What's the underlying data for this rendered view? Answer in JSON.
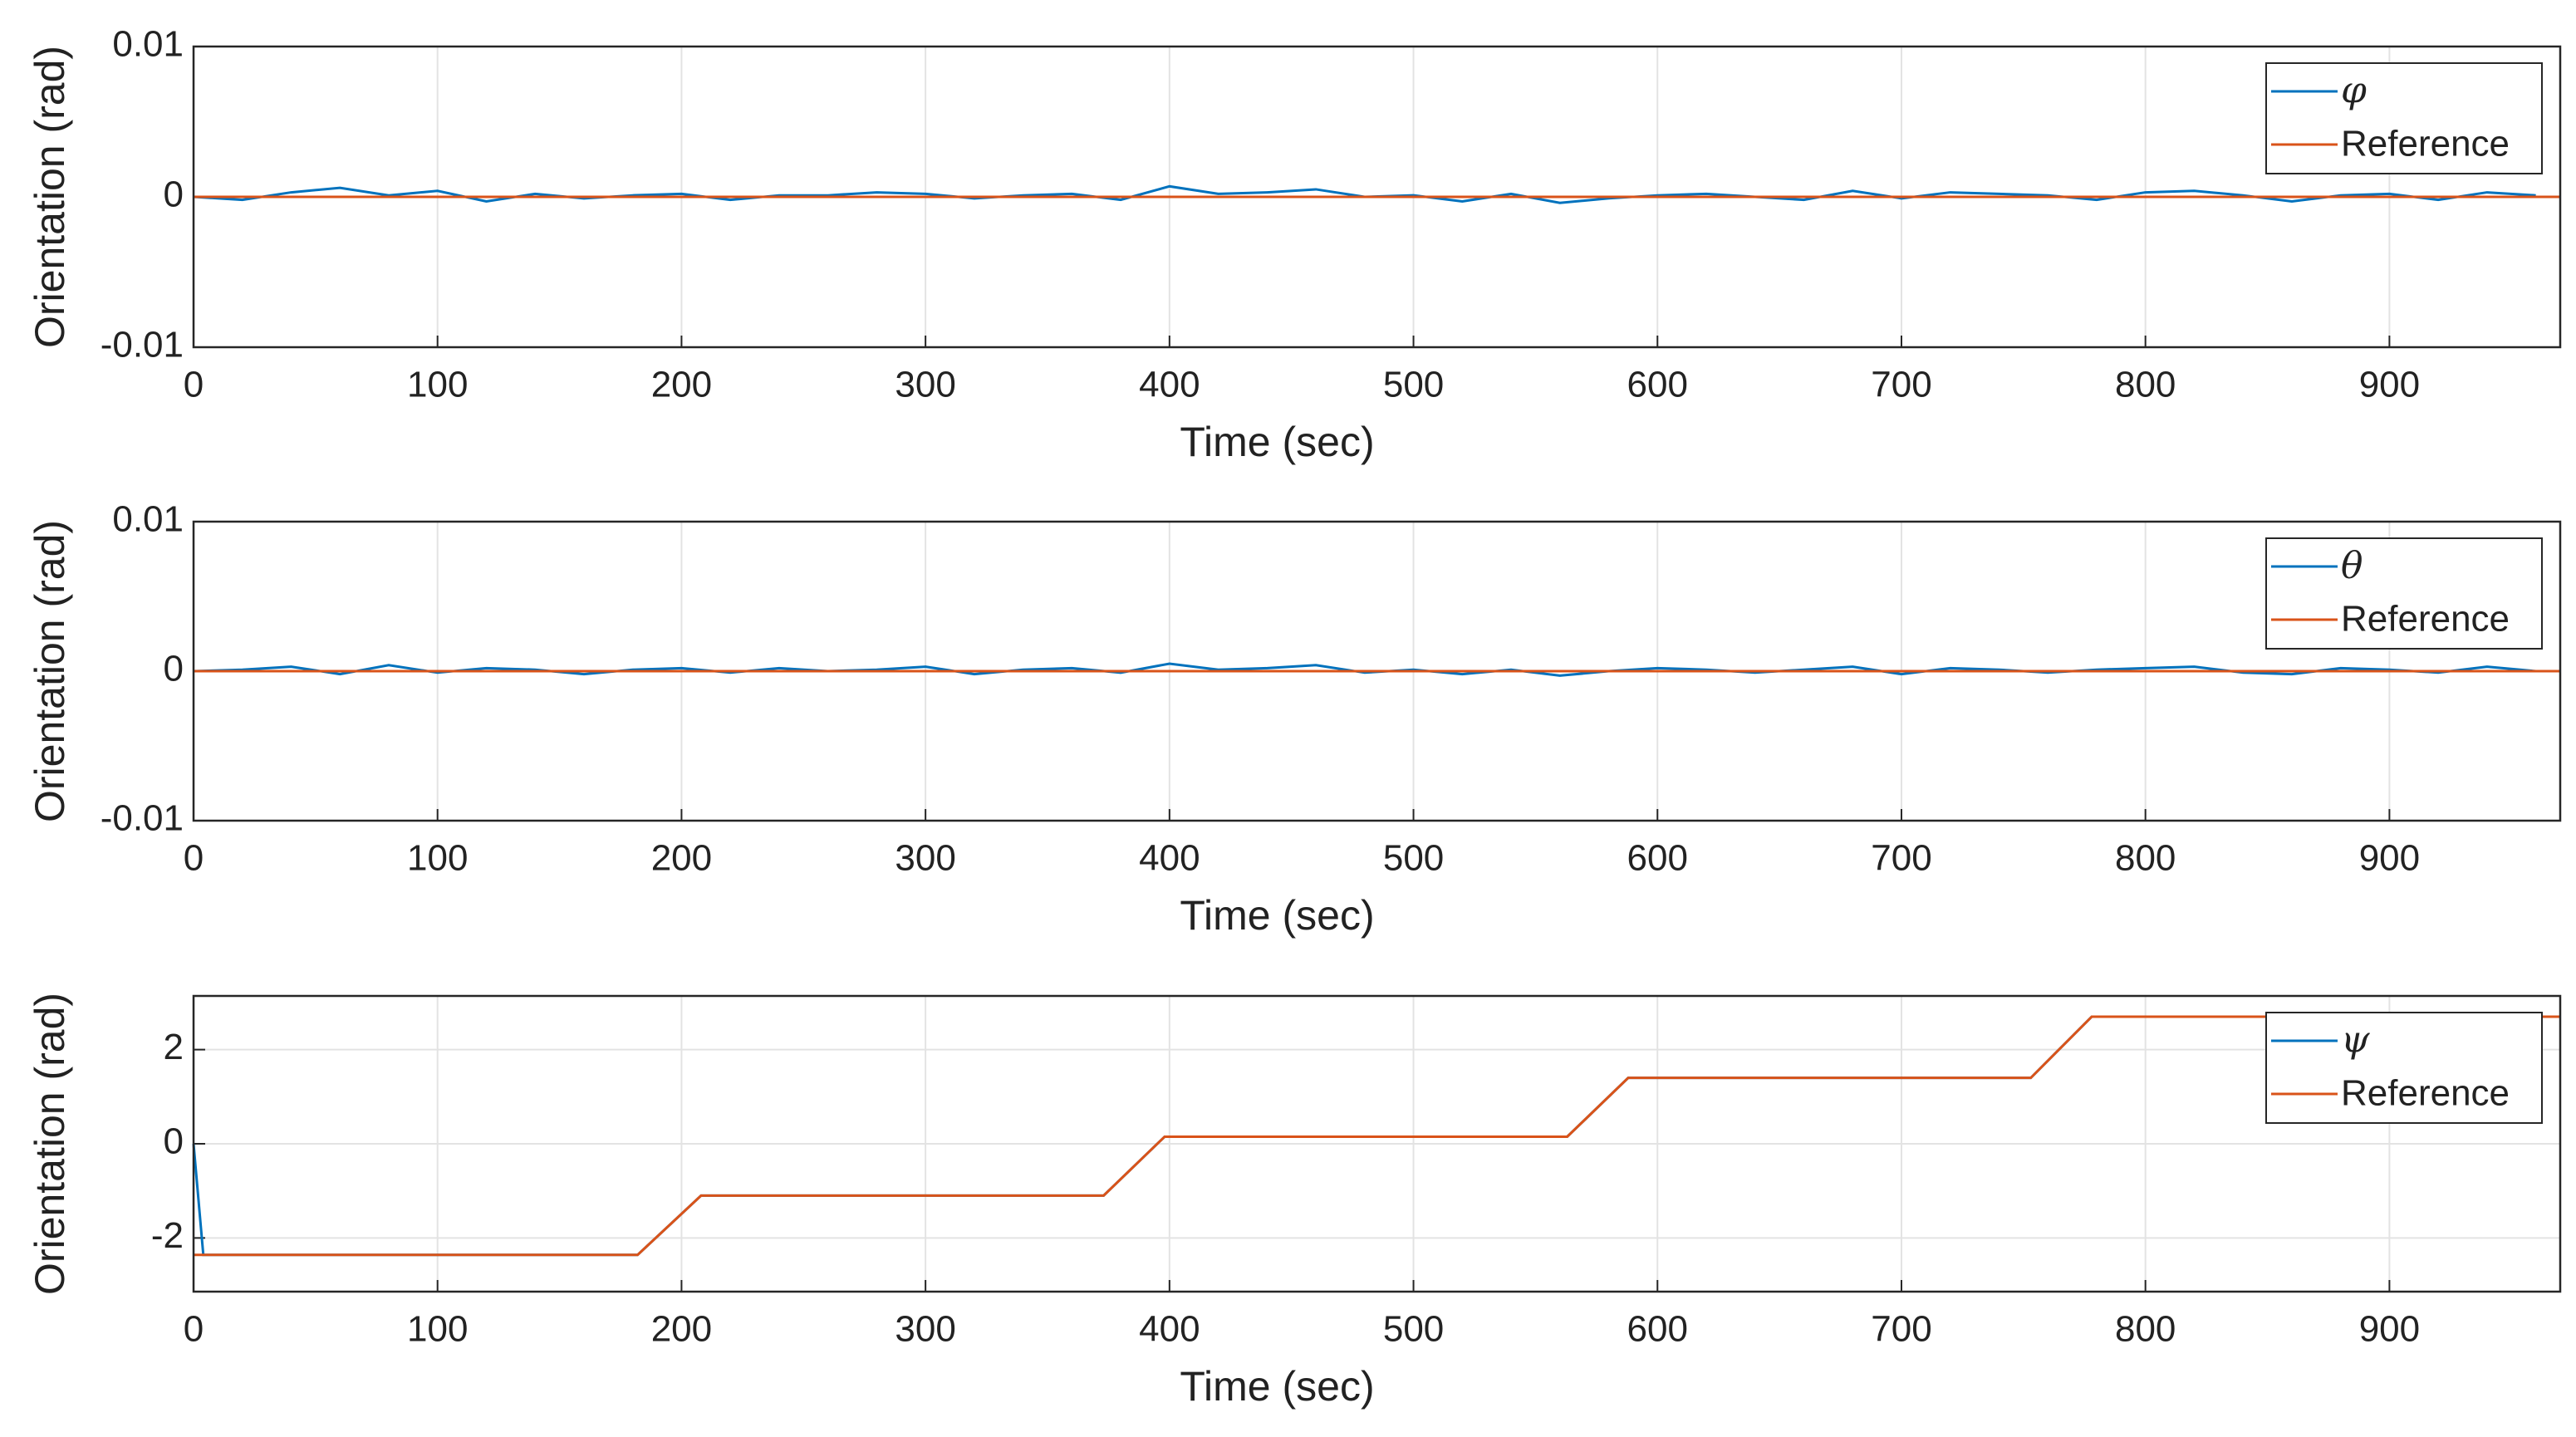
{
  "chart_data": [
    {
      "type": "line",
      "xlabel": "Time (sec)",
      "ylabel": "Orientation (rad)",
      "xlim": [
        0,
        970
      ],
      "xticks": [
        0,
        100,
        200,
        300,
        400,
        500,
        600,
        700,
        800,
        900
      ],
      "ylim": [
        -0.01,
        0.01
      ],
      "yticks": [
        -0.01,
        0,
        0.01
      ],
      "grid": true,
      "legend": "northeast",
      "series": [
        {
          "name": "φ",
          "color": "#0072BD",
          "x": [
            0,
            20,
            40,
            60,
            80,
            100,
            120,
            140,
            160,
            180,
            200,
            220,
            240,
            260,
            280,
            300,
            320,
            340,
            360,
            380,
            400,
            420,
            440,
            460,
            480,
            500,
            520,
            540,
            560,
            580,
            600,
            620,
            640,
            660,
            680,
            700,
            720,
            740,
            760,
            780,
            800,
            820,
            840,
            860,
            880,
            900,
            920,
            940,
            960
          ],
          "values": [
            0,
            -0.0002,
            0.0003,
            0.0006,
            0.0001,
            0.0004,
            -0.0003,
            0.0002,
            -0.0001,
            0.0001,
            0.0002,
            -0.0002,
            0.0001,
            0.0001,
            0.0003,
            0.0002,
            -0.0001,
            0.0001,
            0.0002,
            -0.0002,
            0.0007,
            0.0002,
            0.0003,
            0.0005,
            0,
            0.0001,
            -0.0003,
            0.0002,
            -0.0004,
            -0.0001,
            0.0001,
            0.0002,
            0,
            -0.0002,
            0.0004,
            -0.0001,
            0.0003,
            0.0002,
            0.0001,
            -0.0002,
            0.0003,
            0.0004,
            0.0001,
            -0.0003,
            0.0001,
            0.0002,
            -0.0002,
            0.0003,
            0.0001
          ]
        },
        {
          "name": "Reference",
          "color": "#D95319",
          "x": [
            0,
            970
          ],
          "values": [
            0,
            0
          ]
        }
      ]
    },
    {
      "type": "line",
      "xlabel": "Time (sec)",
      "ylabel": "Orientation (rad)",
      "xlim": [
        0,
        970
      ],
      "xticks": [
        0,
        100,
        200,
        300,
        400,
        500,
        600,
        700,
        800,
        900
      ],
      "ylim": [
        -0.01,
        0.01
      ],
      "yticks": [
        -0.01,
        0,
        0.01
      ],
      "grid": true,
      "legend": "northeast",
      "series": [
        {
          "name": "θ",
          "color": "#0072BD",
          "x": [
            0,
            20,
            40,
            60,
            80,
            100,
            120,
            140,
            160,
            180,
            200,
            220,
            240,
            260,
            280,
            300,
            320,
            340,
            360,
            380,
            400,
            420,
            440,
            460,
            480,
            500,
            520,
            540,
            560,
            580,
            600,
            620,
            640,
            660,
            680,
            700,
            720,
            740,
            760,
            780,
            800,
            820,
            840,
            860,
            880,
            900,
            920,
            940,
            960
          ],
          "values": [
            0,
            0.0001,
            0.0003,
            -0.0002,
            0.0004,
            -0.0001,
            0.0002,
            0.0001,
            -0.0002,
            0.0001,
            0.0002,
            -0.0001,
            0.0002,
            0,
            0.0001,
            0.0003,
            -0.0002,
            0.0001,
            0.0002,
            -0.0001,
            0.0005,
            0.0001,
            0.0002,
            0.0004,
            -0.0001,
            0.0001,
            -0.0002,
            0.0001,
            -0.0003,
            0,
            0.0002,
            0.0001,
            -0.0001,
            0.0001,
            0.0003,
            -0.0002,
            0.0002,
            0.0001,
            -0.0001,
            0.0001,
            0.0002,
            0.0003,
            -0.0001,
            -0.0002,
            0.0002,
            0.0001,
            -0.0001,
            0.0003,
            0
          ]
        },
        {
          "name": "Reference",
          "color": "#D95319",
          "x": [
            0,
            970
          ],
          "values": [
            0,
            0
          ]
        }
      ]
    },
    {
      "type": "line",
      "xlabel": "Time (sec)",
      "ylabel": "Orientation (rad)",
      "xlim": [
        0,
        970
      ],
      "xticks": [
        0,
        100,
        200,
        300,
        400,
        500,
        600,
        700,
        800,
        900
      ],
      "ylim": [
        -3.14,
        3.14
      ],
      "yticks": [
        -2,
        0,
        2
      ],
      "grid": true,
      "legend": "northeast",
      "series": [
        {
          "name": "ψ",
          "color": "#0072BD",
          "x": [
            0,
            4,
            182,
            208,
            373,
            398,
            563,
            588,
            753,
            778,
            970
          ],
          "values": [
            0,
            -2.36,
            -2.36,
            -1.1,
            -1.1,
            0.15,
            0.15,
            1.4,
            1.4,
            2.7,
            2.7
          ]
        },
        {
          "name": "Reference",
          "color": "#D95319",
          "x": [
            0,
            182,
            208,
            373,
            398,
            563,
            588,
            753,
            778,
            970
          ],
          "values": [
            -2.36,
            -2.36,
            -1.1,
            -1.1,
            0.15,
            0.15,
            1.4,
            1.4,
            2.7,
            2.7
          ]
        }
      ]
    }
  ]
}
